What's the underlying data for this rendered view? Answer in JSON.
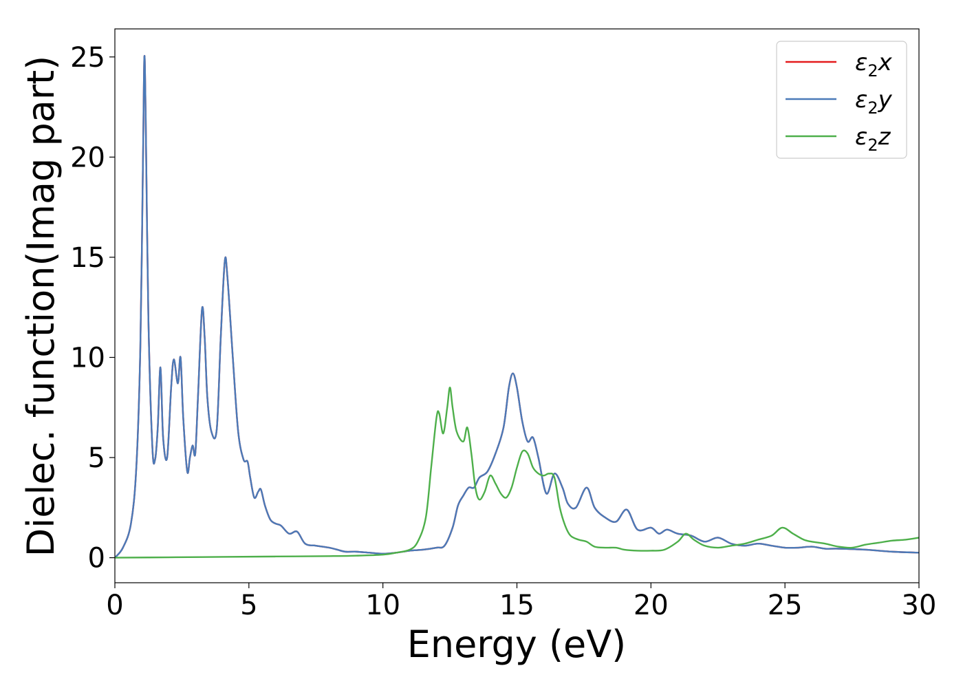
{
  "chart_data": {
    "type": "line",
    "xlabel": "Energy (eV)",
    "ylabel": "Dielec. function(Imag part)",
    "xlim": [
      0,
      30
    ],
    "ylim": [
      -1.25,
      26.4
    ],
    "xticks": [
      "0",
      "5",
      "10",
      "15",
      "20",
      "25",
      "30"
    ],
    "yticks": [
      "0",
      "5",
      "10",
      "15",
      "20",
      "25"
    ],
    "legend": "top-right",
    "grid": false,
    "series": [
      {
        "name": "ε₂x",
        "label_base": "ε",
        "label_sub": "2",
        "label_var": "x",
        "color": "#e41a1c",
        "x": [
          0,
          0.3,
          0.6,
          0.8,
          0.95,
          1.05,
          1.1,
          1.15,
          1.25,
          1.4,
          1.5,
          1.6,
          1.7,
          1.8,
          1.95,
          2.1,
          2.2,
          2.35,
          2.45,
          2.55,
          2.7,
          2.8,
          2.9,
          3.0,
          3.1,
          3.25,
          3.35,
          3.45,
          3.6,
          3.8,
          3.95,
          4.1,
          4.2,
          4.4,
          4.6,
          4.8,
          4.95,
          5.05,
          5.2,
          5.35,
          5.45,
          5.6,
          5.8,
          6.0,
          6.2,
          6.5,
          6.8,
          7.1,
          7.5,
          8.0,
          8.3,
          8.6,
          9.0,
          9.5,
          10.0,
          10.5,
          11.0,
          11.5,
          12.0,
          12.3,
          12.6,
          12.8,
          13.0,
          13.2,
          13.4,
          13.6,
          13.9,
          14.2,
          14.5,
          14.7,
          14.85,
          15.0,
          15.2,
          15.4,
          15.6,
          15.8,
          16.1,
          16.4,
          16.7,
          16.9,
          17.2,
          17.6,
          17.9,
          18.3,
          18.7,
          19.1,
          19.5,
          20.0,
          20.3,
          20.6,
          21.0,
          21.5,
          22.0,
          22.5,
          23.0,
          23.5,
          24.0,
          24.5,
          25.0,
          25.5,
          26.0,
          26.5,
          27.0,
          28.0,
          29.0,
          30.0
        ],
        "y": [
          0,
          0.5,
          1.7,
          4.5,
          10.5,
          20.0,
          25.0,
          22.0,
          12.0,
          5.5,
          4.9,
          6.5,
          9.5,
          6.0,
          5.0,
          8.5,
          9.9,
          8.7,
          10.0,
          7.0,
          4.3,
          5.0,
          5.6,
          5.2,
          8.0,
          12.4,
          11.0,
          8.0,
          6.3,
          6.4,
          11.0,
          14.8,
          14.0,
          10.0,
          6.3,
          4.9,
          4.8,
          4.0,
          3.0,
          3.3,
          3.4,
          2.6,
          1.9,
          1.7,
          1.6,
          1.2,
          1.3,
          0.7,
          0.6,
          0.5,
          0.4,
          0.3,
          0.3,
          0.25,
          0.2,
          0.25,
          0.35,
          0.4,
          0.5,
          0.6,
          1.5,
          2.6,
          3.1,
          3.5,
          3.5,
          4.0,
          4.3,
          5.2,
          6.5,
          8.5,
          9.2,
          8.5,
          6.8,
          5.8,
          6.0,
          5.0,
          3.2,
          4.2,
          3.5,
          2.7,
          2.5,
          3.5,
          2.5,
          2.0,
          1.8,
          2.4,
          1.4,
          1.5,
          1.2,
          1.4,
          1.2,
          1.1,
          0.8,
          1.0,
          0.7,
          0.6,
          0.7,
          0.6,
          0.5,
          0.5,
          0.55,
          0.45,
          0.45,
          0.4,
          0.3,
          0.25
        ]
      },
      {
        "name": "ε₂y",
        "label_base": "ε",
        "label_sub": "2",
        "label_var": "y",
        "color": "#4a7ab8",
        "x": [
          0,
          0.3,
          0.6,
          0.8,
          0.95,
          1.05,
          1.1,
          1.15,
          1.25,
          1.4,
          1.5,
          1.6,
          1.7,
          1.8,
          1.95,
          2.1,
          2.2,
          2.35,
          2.45,
          2.55,
          2.7,
          2.8,
          2.9,
          3.0,
          3.1,
          3.25,
          3.35,
          3.45,
          3.6,
          3.8,
          3.95,
          4.1,
          4.2,
          4.4,
          4.6,
          4.8,
          4.95,
          5.05,
          5.2,
          5.35,
          5.45,
          5.6,
          5.8,
          6.0,
          6.2,
          6.5,
          6.8,
          7.1,
          7.5,
          8.0,
          8.3,
          8.6,
          9.0,
          9.5,
          10.0,
          10.5,
          11.0,
          11.5,
          12.0,
          12.3,
          12.6,
          12.8,
          13.0,
          13.2,
          13.4,
          13.6,
          13.9,
          14.2,
          14.5,
          14.7,
          14.85,
          15.0,
          15.2,
          15.4,
          15.6,
          15.8,
          16.1,
          16.4,
          16.7,
          16.9,
          17.2,
          17.6,
          17.9,
          18.3,
          18.7,
          19.1,
          19.5,
          20.0,
          20.3,
          20.6,
          21.0,
          21.5,
          22.0,
          22.5,
          23.0,
          23.5,
          24.0,
          24.5,
          25.0,
          25.5,
          26.0,
          26.5,
          27.0,
          28.0,
          29.0,
          30.0
        ],
        "y": [
          0,
          0.5,
          1.7,
          4.5,
          10.5,
          20.0,
          25.0,
          22.0,
          12.0,
          5.5,
          4.9,
          6.5,
          9.5,
          6.0,
          5.0,
          8.5,
          9.9,
          8.7,
          10.0,
          7.0,
          4.3,
          5.0,
          5.6,
          5.2,
          8.0,
          12.4,
          11.0,
          8.0,
          6.3,
          6.4,
          11.0,
          14.8,
          14.0,
          10.0,
          6.3,
          4.9,
          4.8,
          4.0,
          3.0,
          3.3,
          3.4,
          2.6,
          1.9,
          1.7,
          1.6,
          1.2,
          1.3,
          0.7,
          0.6,
          0.5,
          0.4,
          0.3,
          0.3,
          0.25,
          0.2,
          0.25,
          0.35,
          0.4,
          0.5,
          0.6,
          1.5,
          2.6,
          3.1,
          3.5,
          3.5,
          4.0,
          4.3,
          5.2,
          6.5,
          8.5,
          9.2,
          8.5,
          6.8,
          5.8,
          6.0,
          5.0,
          3.2,
          4.2,
          3.5,
          2.7,
          2.5,
          3.5,
          2.5,
          2.0,
          1.8,
          2.4,
          1.4,
          1.5,
          1.2,
          1.4,
          1.2,
          1.1,
          0.8,
          1.0,
          0.7,
          0.6,
          0.7,
          0.6,
          0.5,
          0.5,
          0.55,
          0.45,
          0.45,
          0.4,
          0.3,
          0.25
        ]
      },
      {
        "name": "ε₂z",
        "label_base": "ε",
        "label_sub": "2",
        "label_var": "z",
        "color": "#4daf4a",
        "x": [
          0,
          2,
          4,
          6,
          8,
          9,
          10,
          10.5,
          11.0,
          11.3,
          11.6,
          11.8,
          12.0,
          12.1,
          12.25,
          12.4,
          12.5,
          12.6,
          12.75,
          13.0,
          13.15,
          13.3,
          13.45,
          13.6,
          13.8,
          14.0,
          14.2,
          14.4,
          14.6,
          14.8,
          15.0,
          15.2,
          15.4,
          15.6,
          15.8,
          16.0,
          16.2,
          16.4,
          16.6,
          16.8,
          17.0,
          17.3,
          17.6,
          17.9,
          18.3,
          18.7,
          19.0,
          19.5,
          20.0,
          20.5,
          21.0,
          21.3,
          21.6,
          22.0,
          22.5,
          23.0,
          23.5,
          24.0,
          24.5,
          24.9,
          25.3,
          25.7,
          26.0,
          26.5,
          27.0,
          27.5,
          28.0,
          28.5,
          29.0,
          29.5,
          30.0
        ],
        "y": [
          0,
          0.02,
          0.04,
          0.06,
          0.08,
          0.1,
          0.15,
          0.25,
          0.4,
          0.8,
          2.0,
          4.5,
          7.0,
          7.2,
          6.2,
          7.5,
          8.5,
          7.5,
          6.3,
          5.8,
          6.5,
          5.2,
          3.5,
          2.9,
          3.3,
          4.1,
          3.7,
          3.2,
          3.0,
          3.5,
          4.5,
          5.3,
          5.2,
          4.5,
          4.2,
          4.1,
          4.2,
          4.0,
          2.5,
          1.6,
          1.1,
          0.9,
          0.8,
          0.55,
          0.5,
          0.5,
          0.4,
          0.35,
          0.35,
          0.4,
          0.8,
          1.2,
          0.9,
          0.6,
          0.5,
          0.6,
          0.7,
          0.9,
          1.1,
          1.5,
          1.2,
          0.9,
          0.8,
          0.7,
          0.55,
          0.5,
          0.65,
          0.75,
          0.85,
          0.9,
          1.0
        ]
      }
    ]
  }
}
